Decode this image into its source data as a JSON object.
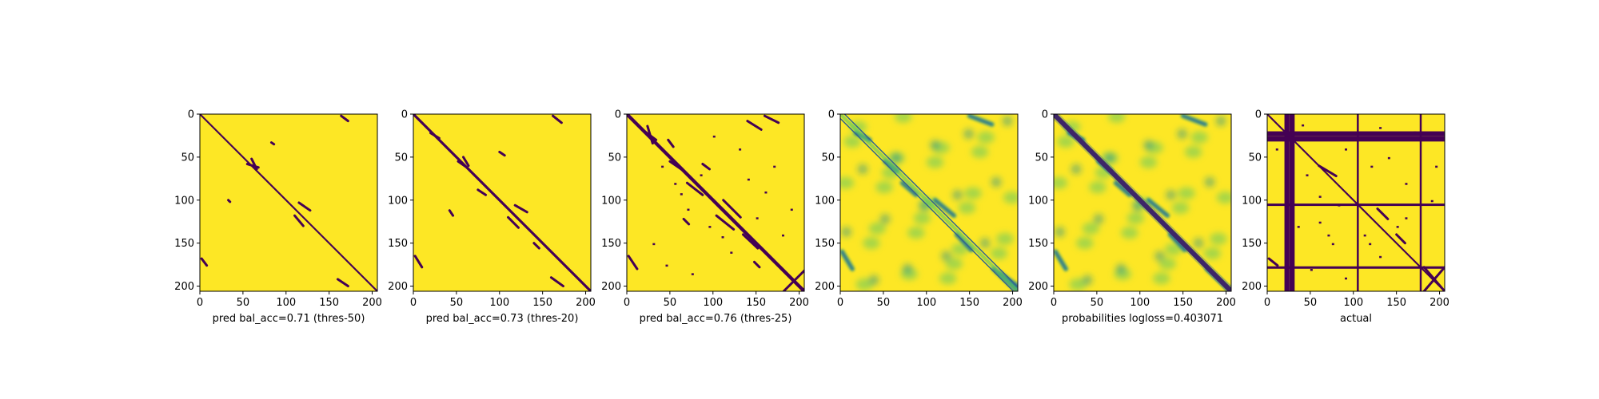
{
  "figure": {
    "panels": [
      {
        "caption": "pred bal_acc=0.71 (thres-50)"
      },
      {
        "caption": "pred bal_acc=0.73 (thres-20)"
      },
      {
        "caption": "pred bal_acc=0.76 (thres-25)"
      },
      {
        "caption": ""
      },
      {
        "caption": "probabilities logloss=0.403071"
      },
      {
        "caption": "actual"
      }
    ]
  },
  "colors": {
    "background": "#fde725",
    "dark": "#440154",
    "teal": "#21918c",
    "green": "#5ec962",
    "blue": "#31688e"
  },
  "chart_data": [
    {
      "type": "heatmap",
      "colormap": "viridis",
      "binary": true,
      "xlabel": "pred bal_acc=0.71 (thres-50)",
      "xlim": [
        0,
        206
      ],
      "ylim": [
        206,
        0
      ],
      "xticks": [
        0,
        50,
        100,
        150,
        200
      ],
      "yticks": [
        0,
        50,
        100,
        150,
        200
      ],
      "diagonal": true,
      "diag_width": 2,
      "segments": [
        {
          "a": [
            55,
            58
          ],
          "b": [
            68,
            62
          ]
        },
        {
          "a": [
            60,
            52
          ],
          "b": [
            66,
            64
          ]
        },
        {
          "a": [
            115,
            103
          ],
          "b": [
            128,
            112
          ]
        },
        {
          "a": [
            110,
            118
          ],
          "b": [
            120,
            130
          ]
        },
        {
          "a": [
            160,
            192
          ],
          "b": [
            172,
            200
          ]
        },
        {
          "a": [
            164,
            2
          ],
          "b": [
            172,
            8
          ]
        },
        {
          "a": [
            2,
            168
          ],
          "b": [
            8,
            176
          ]
        },
        {
          "a": [
            83,
            33
          ],
          "b": [
            86,
            35
          ]
        },
        {
          "a": [
            33,
            100
          ],
          "b": [
            35,
            102
          ]
        }
      ]
    },
    {
      "type": "heatmap",
      "colormap": "viridis",
      "binary": true,
      "xlabel": "pred bal_acc=0.73 (thres-20)",
      "xlim": [
        0,
        206
      ],
      "ylim": [
        206,
        0
      ],
      "xticks": [
        0,
        50,
        100,
        150,
        200
      ],
      "yticks": [
        0,
        50,
        100,
        150,
        200
      ],
      "diagonal": true,
      "diag_width": 3,
      "segments": [
        {
          "a": [
            20,
            22
          ],
          "b": [
            30,
            28
          ]
        },
        {
          "a": [
            52,
            55
          ],
          "b": [
            62,
            62
          ]
        },
        {
          "a": [
            58,
            50
          ],
          "b": [
            64,
            60
          ]
        },
        {
          "a": [
            75,
            88
          ],
          "b": [
            84,
            94
          ]
        },
        {
          "a": [
            118,
            106
          ],
          "b": [
            132,
            114
          ]
        },
        {
          "a": [
            110,
            120
          ],
          "b": [
            122,
            132
          ]
        },
        {
          "a": [
            160,
            190
          ],
          "b": [
            174,
            200
          ]
        },
        {
          "a": [
            162,
            2
          ],
          "b": [
            172,
            10
          ]
        },
        {
          "a": [
            2,
            165
          ],
          "b": [
            10,
            178
          ]
        },
        {
          "a": [
            100,
            44
          ],
          "b": [
            106,
            48
          ]
        },
        {
          "a": [
            42,
            112
          ],
          "b": [
            46,
            118
          ]
        },
        {
          "a": [
            140,
            150
          ],
          "b": [
            146,
            156
          ]
        }
      ]
    },
    {
      "type": "heatmap",
      "colormap": "viridis",
      "binary": true,
      "xlabel": "pred bal_acc=0.76 (thres-25)",
      "xlim": [
        0,
        206
      ],
      "ylim": [
        206,
        0
      ],
      "xticks": [
        0,
        50,
        100,
        150,
        200
      ],
      "yticks": [
        0,
        50,
        100,
        150,
        200
      ],
      "diagonal": true,
      "diag_width": 4,
      "segments": [
        {
          "a": [
            18,
            18
          ],
          "b": [
            34,
            30
          ]
        },
        {
          "a": [
            24,
            14
          ],
          "b": [
            30,
            34
          ]
        },
        {
          "a": [
            50,
            55
          ],
          "b": [
            66,
            66
          ]
        },
        {
          "a": [
            70,
            80
          ],
          "b": [
            88,
            94
          ]
        },
        {
          "a": [
            112,
            100
          ],
          "b": [
            132,
            120
          ]
        },
        {
          "a": [
            104,
            118
          ],
          "b": [
            124,
            134
          ]
        },
        {
          "a": [
            135,
            140
          ],
          "b": [
            152,
            156
          ]
        },
        {
          "a": [
            182,
            182
          ],
          "b": [
            206,
            206
          ]
        },
        {
          "a": [
            182,
            206
          ],
          "b": [
            206,
            182
          ]
        },
        {
          "a": [
            2,
            165
          ],
          "b": [
            12,
            180
          ]
        },
        {
          "a": [
            140,
            8
          ],
          "b": [
            156,
            18
          ]
        },
        {
          "a": [
            160,
            2
          ],
          "b": [
            176,
            10
          ]
        },
        {
          "a": [
            48,
            30
          ],
          "b": [
            54,
            38
          ]
        },
        {
          "a": [
            88,
            58
          ],
          "b": [
            96,
            64
          ]
        },
        {
          "a": [
            66,
            122
          ],
          "b": [
            72,
            128
          ]
        },
        {
          "a": [
            148,
            172
          ],
          "b": [
            154,
            178
          ]
        }
      ],
      "specks": [
        [
          40,
          60
        ],
        [
          55,
          80
        ],
        [
          62,
          92
        ],
        [
          70,
          110
        ],
        [
          85,
          70
        ],
        [
          95,
          130
        ],
        [
          110,
          142
        ],
        [
          120,
          160
        ],
        [
          30,
          150
        ],
        [
          150,
          120
        ],
        [
          160,
          90
        ],
        [
          170,
          60
        ],
        [
          130,
          40
        ],
        [
          100,
          25
        ],
        [
          45,
          175
        ],
        [
          75,
          185
        ],
        [
          180,
          140
        ],
        [
          190,
          110
        ],
        [
          140,
          75
        ]
      ]
    },
    {
      "type": "heatmap",
      "colormap": "viridis",
      "binary": false,
      "xlabel": "",
      "xlim": [
        0,
        206
      ],
      "ylim": [
        206,
        0
      ],
      "xticks": [
        0,
        50,
        100,
        150,
        200
      ],
      "yticks": [
        0,
        50,
        100,
        150,
        200
      ],
      "diagonal": true,
      "diag_style": "double-line",
      "segments": [
        {
          "a": [
            18,
            22
          ],
          "b": [
            34,
            30
          ]
        },
        {
          "a": [
            52,
            55
          ],
          "b": [
            66,
            66
          ]
        },
        {
          "a": [
            72,
            80
          ],
          "b": [
            88,
            94
          ]
        },
        {
          "a": [
            110,
            100
          ],
          "b": [
            132,
            118
          ]
        },
        {
          "a": [
            135,
            140
          ],
          "b": [
            152,
            158
          ]
        },
        {
          "a": [
            178,
            180
          ],
          "b": [
            206,
            206
          ]
        },
        {
          "a": [
            150,
            2
          ],
          "b": [
            176,
            12
          ]
        },
        {
          "a": [
            2,
            160
          ],
          "b": [
            14,
            180
          ]
        },
        {
          "a": [
            185,
            185
          ],
          "b": [
            206,
            200
          ]
        }
      ]
    },
    {
      "type": "heatmap",
      "colormap": "viridis",
      "binary": false,
      "xlabel": "probabilities logloss=0.403071",
      "xlim": [
        0,
        206
      ],
      "ylim": [
        206,
        0
      ],
      "xticks": [
        0,
        50,
        100,
        150,
        200
      ],
      "yticks": [
        0,
        50,
        100,
        150,
        200
      ],
      "diagonal": true,
      "diag_style": "thick",
      "segments": [
        {
          "a": [
            18,
            22
          ],
          "b": [
            34,
            30
          ]
        },
        {
          "a": [
            52,
            55
          ],
          "b": [
            66,
            66
          ]
        },
        {
          "a": [
            72,
            80
          ],
          "b": [
            88,
            94
          ]
        },
        {
          "a": [
            110,
            100
          ],
          "b": [
            132,
            118
          ]
        },
        {
          "a": [
            135,
            140
          ],
          "b": [
            152,
            158
          ]
        },
        {
          "a": [
            178,
            180
          ],
          "b": [
            206,
            206
          ]
        },
        {
          "a": [
            150,
            2
          ],
          "b": [
            176,
            12
          ]
        },
        {
          "a": [
            2,
            160
          ],
          "b": [
            14,
            180
          ]
        }
      ]
    },
    {
      "type": "heatmap",
      "colormap": "viridis",
      "binary": true,
      "xlabel": "actual",
      "xlim": [
        0,
        206
      ],
      "ylim": [
        206,
        0
      ],
      "xticks": [
        0,
        50,
        100,
        150,
        200
      ],
      "yticks": [
        0,
        50,
        100,
        150,
        200
      ],
      "diagonal": true,
      "diag_width": 2,
      "bands_thick": [
        22,
        28
      ],
      "bands_thin": [
        104,
        177
      ],
      "segments": [
        {
          "a": [
            182,
            178
          ],
          "b": [
            206,
            206
          ]
        },
        {
          "a": [
            182,
            206
          ],
          "b": [
            206,
            178
          ]
        },
        {
          "a": [
            2,
            168
          ],
          "b": [
            12,
            176
          ]
        },
        {
          "a": [
            60,
            60
          ],
          "b": [
            80,
            72
          ]
        },
        {
          "a": [
            128,
            110
          ],
          "b": [
            140,
            122
          ]
        },
        {
          "a": [
            150,
            140
          ],
          "b": [
            160,
            150
          ]
        }
      ],
      "specks": [
        [
          10,
          40
        ],
        [
          40,
          12
        ],
        [
          45,
          70
        ],
        [
          60,
          95
        ],
        [
          90,
          40
        ],
        [
          120,
          60
        ],
        [
          140,
          50
        ],
        [
          160,
          80
        ],
        [
          190,
          100
        ],
        [
          195,
          60
        ],
        [
          70,
          140
        ],
        [
          75,
          150
        ],
        [
          50,
          180
        ],
        [
          90,
          190
        ],
        [
          130,
          165
        ],
        [
          150,
          130
        ],
        [
          160,
          120
        ],
        [
          170,
          20
        ],
        [
          130,
          15
        ],
        [
          112,
          140
        ],
        [
          118,
          150
        ],
        [
          82,
          105
        ],
        [
          35,
          130
        ],
        [
          60,
          125
        ]
      ]
    }
  ]
}
